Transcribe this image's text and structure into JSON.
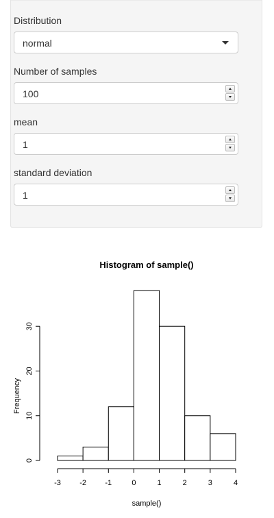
{
  "sidebar": {
    "distribution": {
      "label": "Distribution",
      "selected": "normal"
    },
    "n_samples": {
      "label": "Number of samples",
      "value": "100"
    },
    "mean": {
      "label": "mean",
      "value": "1"
    },
    "sd": {
      "label": "standard deviation",
      "value": "1"
    }
  },
  "chart_data": {
    "type": "bar",
    "title": "Histogram of sample()",
    "xlabel": "sample()",
    "ylabel": "Frequency",
    "bins": [
      {
        "from": -3,
        "to": -2,
        "count": 1
      },
      {
        "from": -2,
        "to": -1,
        "count": 3
      },
      {
        "from": -1,
        "to": 0,
        "count": 12
      },
      {
        "from": 0,
        "to": 1,
        "count": 38
      },
      {
        "from": 1,
        "to": 2,
        "count": 30
      },
      {
        "from": 2,
        "to": 3,
        "count": 10
      },
      {
        "from": 3,
        "to": 4,
        "count": 6
      }
    ],
    "xlim": [
      -3,
      4
    ],
    "ylim": [
      0,
      38
    ],
    "xticks": [
      "-3",
      "-2",
      "-1",
      "0",
      "1",
      "2",
      "3",
      "4"
    ],
    "yticks": [
      "0",
      "10",
      "20",
      "30"
    ],
    "grid": false
  }
}
